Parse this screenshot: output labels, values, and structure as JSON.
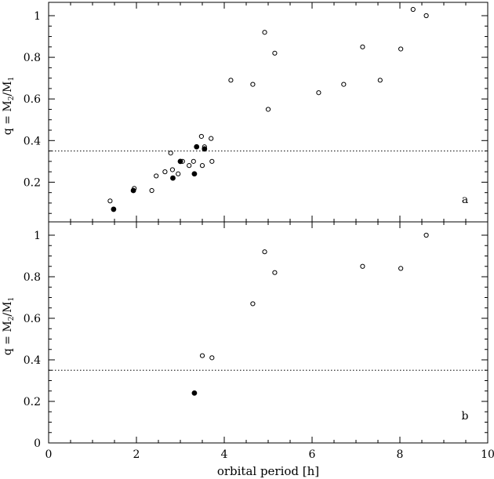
{
  "chart_data": [
    {
      "type": "scatter",
      "panel_label": "a",
      "ylabel_parts": [
        "q = M",
        "2",
        "/M",
        "1"
      ],
      "xlim": [
        0,
        10
      ],
      "ylim": [
        0.0,
        1.04
      ],
      "yticks": [
        0.2,
        0.4,
        0.6,
        0.8,
        1
      ],
      "ytick_labels": [
        "0.2",
        "0.4",
        "0.6",
        "0.8",
        "1"
      ],
      "threshold_line": 0.35,
      "series": [
        {
          "marker": "open-circle",
          "points": [
            {
              "x": 1.4,
              "y": 0.11
            },
            {
              "x": 1.95,
              "y": 0.17
            },
            {
              "x": 2.35,
              "y": 0.16
            },
            {
              "x": 2.45,
              "y": 0.23
            },
            {
              "x": 2.65,
              "y": 0.25
            },
            {
              "x": 2.78,
              "y": 0.34
            },
            {
              "x": 2.82,
              "y": 0.26
            },
            {
              "x": 2.95,
              "y": 0.24
            },
            {
              "x": 3.05,
              "y": 0.3
            },
            {
              "x": 3.2,
              "y": 0.28
            },
            {
              "x": 3.3,
              "y": 0.3
            },
            {
              "x": 3.48,
              "y": 0.42
            },
            {
              "x": 3.5,
              "y": 0.28
            },
            {
              "x": 3.55,
              "y": 0.37
            },
            {
              "x": 3.7,
              "y": 0.41
            },
            {
              "x": 3.72,
              "y": 0.3
            },
            {
              "x": 4.15,
              "y": 0.69
            },
            {
              "x": 4.65,
              "y": 0.67
            },
            {
              "x": 4.92,
              "y": 0.92
            },
            {
              "x": 5.0,
              "y": 0.55
            },
            {
              "x": 5.15,
              "y": 0.82
            },
            {
              "x": 6.15,
              "y": 0.63
            },
            {
              "x": 6.72,
              "y": 0.67
            },
            {
              "x": 7.15,
              "y": 0.85
            },
            {
              "x": 7.55,
              "y": 0.69
            },
            {
              "x": 8.02,
              "y": 0.84
            },
            {
              "x": 8.3,
              "y": 1.03
            },
            {
              "x": 8.6,
              "y": 1.0
            }
          ]
        },
        {
          "marker": "filled-circle",
          "points": [
            {
              "x": 1.48,
              "y": 0.07
            },
            {
              "x": 1.93,
              "y": 0.16
            },
            {
              "x": 2.83,
              "y": 0.22
            },
            {
              "x": 3.0,
              "y": 0.3
            },
            {
              "x": 3.32,
              "y": 0.24
            },
            {
              "x": 3.37,
              "y": 0.37
            },
            {
              "x": 3.55,
              "y": 0.36
            }
          ]
        }
      ]
    },
    {
      "type": "scatter",
      "panel_label": "b",
      "ylabel_parts": [
        "q = M",
        "2",
        "/M",
        "1"
      ],
      "xlabel": "orbital period [h]",
      "xlim": [
        0,
        10
      ],
      "ylim": [
        0,
        1.04
      ],
      "xticks": [
        0,
        2,
        4,
        6,
        8,
        10
      ],
      "xtick_labels": [
        "0",
        "2",
        "4",
        "6",
        "8",
        "10"
      ],
      "yticks": [
        0,
        0.2,
        0.4,
        0.6,
        0.8,
        1
      ],
      "ytick_labels": [
        "0",
        "0.2",
        "0.4",
        "0.6",
        "0.8",
        "1"
      ],
      "threshold_line": 0.35,
      "series": [
        {
          "marker": "open-circle",
          "points": [
            {
              "x": 3.5,
              "y": 0.42
            },
            {
              "x": 3.72,
              "y": 0.41
            },
            {
              "x": 4.65,
              "y": 0.67
            },
            {
              "x": 4.92,
              "y": 0.92
            },
            {
              "x": 5.15,
              "y": 0.82
            },
            {
              "x": 7.15,
              "y": 0.85
            },
            {
              "x": 8.02,
              "y": 0.84
            },
            {
              "x": 8.6,
              "y": 1.0
            }
          ]
        },
        {
          "marker": "filled-circle",
          "points": [
            {
              "x": 3.32,
              "y": 0.24
            }
          ]
        }
      ]
    }
  ]
}
